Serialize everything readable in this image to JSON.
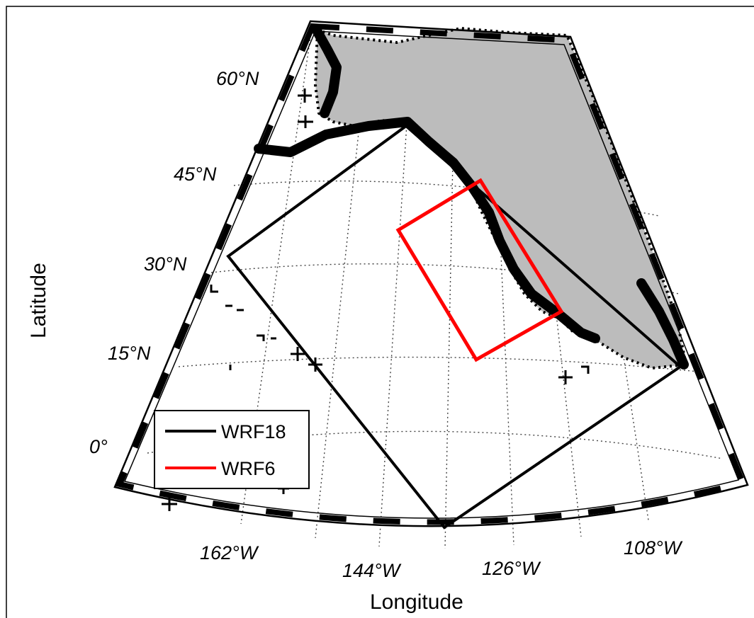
{
  "map": {
    "xlabel": "Longitude",
    "ylabel": "Latitude",
    "latitude_labels": [
      "60°N",
      "45°N",
      "30°N",
      "15°N",
      "0°"
    ],
    "longitude_labels": [
      "162°W",
      "144°W",
      "126°W",
      "108°W"
    ],
    "land_color": "#bcbcbc",
    "gridlines": "dotted"
  },
  "legend": {
    "placement": "lower-left",
    "entries": [
      {
        "label": "WRF18",
        "color": "#000000"
      },
      {
        "label": "WRF6",
        "color": "#ff0000"
      }
    ]
  }
}
